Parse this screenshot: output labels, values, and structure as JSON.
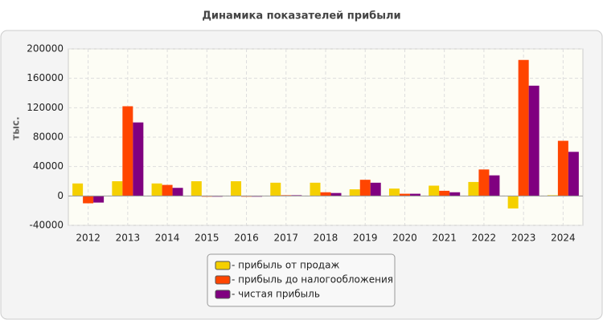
{
  "chart_data": {
    "type": "bar",
    "title": "Динамика показателей прибыли",
    "y_label": "тыс.",
    "categories": [
      "2012",
      "2013",
      "2014",
      "2015",
      "2016",
      "2017",
      "2018",
      "2019",
      "2020",
      "2021",
      "2022",
      "2023",
      "2024"
    ],
    "series": [
      {
        "name": "- прибыль от продаж",
        "color": "#f5d000",
        "values": [
          17000,
          20000,
          17000,
          20000,
          20000,
          18000,
          18000,
          9000,
          10000,
          14000,
          19000,
          -17000,
          1000
        ]
      },
      {
        "name": "- прибыль до налогообложения",
        "color": "#ff4500",
        "values": [
          -10000,
          122000,
          15000,
          -1000,
          -1000,
          1000,
          5000,
          22000,
          3000,
          7000,
          36000,
          185000,
          75000
        ]
      },
      {
        "name": "- чистая прибыль",
        "color": "#800080",
        "values": [
          -9000,
          100000,
          11000,
          -1000,
          -1000,
          1000,
          4000,
          18000,
          3000,
          5000,
          28000,
          150000,
          60000
        ]
      }
    ],
    "ylim": [
      -40000,
      200000
    ],
    "yticks": [
      -40000,
      0,
      40000,
      80000,
      120000,
      160000,
      200000
    ],
    "grid": true
  }
}
